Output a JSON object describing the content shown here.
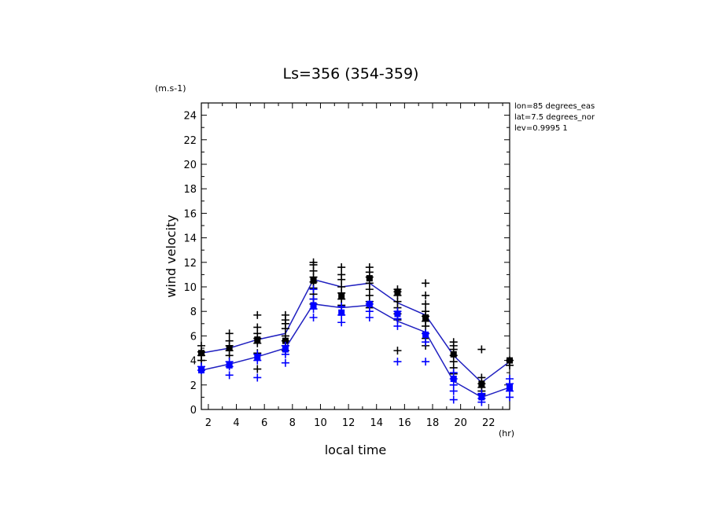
{
  "chart_data": {
    "type": "line",
    "title": "Ls=356 (354-359)",
    "xlabel": "local time",
    "ylabel": "wind velocity",
    "x_unit": "(hr)",
    "y_unit": "(m.s-1)",
    "info": [
      "lon=85 degrees_eas",
      "lat=7.5 degrees_nor",
      "lev=0.9995 1"
    ],
    "xlim": [
      1.5,
      23.5
    ],
    "ylim": [
      0,
      25
    ],
    "x_ticks": [
      2,
      4,
      6,
      8,
      10,
      12,
      14,
      16,
      18,
      20,
      22
    ],
    "y_ticks": [
      0,
      2,
      4,
      6,
      8,
      10,
      12,
      14,
      16,
      18,
      20,
      22,
      24
    ],
    "grid": false,
    "x": [
      1.5,
      3.5,
      5.5,
      7.5,
      9.5,
      11.5,
      13.5,
      15.5,
      17.5,
      19.5,
      21.5,
      23.5
    ],
    "series": [
      {
        "color": "#000000",
        "line": [
          4.6,
          5.0,
          5.7,
          6.2,
          10.6,
          10.0,
          10.3,
          8.7,
          7.7,
          4.4,
          2.2,
          3.9
        ],
        "squares": [
          4.6,
          5.0,
          5.7,
          5.6,
          10.5,
          9.3,
          10.7,
          9.6,
          7.5,
          4.5,
          2.1,
          4.0
        ],
        "scatter": [
          [
            4.0,
            4.4,
            4.7,
            5.2
          ],
          [
            4.4,
            4.8,
            5.2,
            5.6,
            6.2
          ],
          [
            3.3,
            4.6,
            5.4,
            5.8,
            6.2,
            6.7,
            7.7
          ],
          [
            4.8,
            5.2,
            5.6,
            6.0,
            6.6,
            7.0,
            7.3,
            7.7
          ],
          [
            8.6,
            9.0,
            9.4,
            9.9,
            10.4,
            10.8,
            11.3,
            11.8,
            12.0
          ],
          [
            8.5,
            9.0,
            9.5,
            10.0,
            10.6,
            11.0,
            11.6
          ],
          [
            8.3,
            8.8,
            9.3,
            9.8,
            10.3,
            10.8,
            11.2,
            11.6
          ],
          [
            4.8,
            7.3,
            7.8,
            8.3,
            8.8,
            9.3,
            9.6,
            9.8
          ],
          [
            5.2,
            5.8,
            6.2,
            6.8,
            7.2,
            7.6,
            8.0,
            8.6,
            9.3,
            10.3
          ],
          [
            2.9,
            3.4,
            3.9,
            4.4,
            4.9,
            5.2,
            5.5
          ],
          [
            1.2,
            1.5,
            1.8,
            2.1,
            2.6,
            4.9
          ],
          [
            3.6,
            4.0
          ]
        ]
      },
      {
        "color": "#0000ff",
        "line": [
          3.2,
          3.7,
          4.3,
          5.0,
          8.6,
          8.3,
          8.5,
          7.2,
          6.3,
          2.3,
          1.0,
          1.8
        ],
        "squares": [
          3.2,
          3.6,
          4.3,
          4.9,
          8.5,
          7.9,
          8.6,
          7.8,
          6.1,
          2.5,
          1.0,
          1.8
        ],
        "scatter": [
          [
            3.2,
            3.5
          ],
          [
            2.8,
            3.5,
            3.9
          ],
          [
            2.6,
            4.0,
            4.5
          ],
          [
            3.8,
            4.5,
            5.2
          ],
          [
            7.5,
            8.2,
            9.0,
            9.8
          ],
          [
            7.1,
            7.7,
            8.4
          ],
          [
            7.5,
            8.0,
            8.6
          ],
          [
            3.9,
            6.8,
            7.4,
            8.0
          ],
          [
            3.9,
            5.5,
            6.2
          ],
          [
            0.8,
            1.5,
            2.0,
            2.5,
            3.0
          ],
          [
            0.6,
            0.9,
            1.3
          ],
          [
            1.0,
            1.5,
            2.1,
            2.5
          ]
        ]
      }
    ]
  }
}
